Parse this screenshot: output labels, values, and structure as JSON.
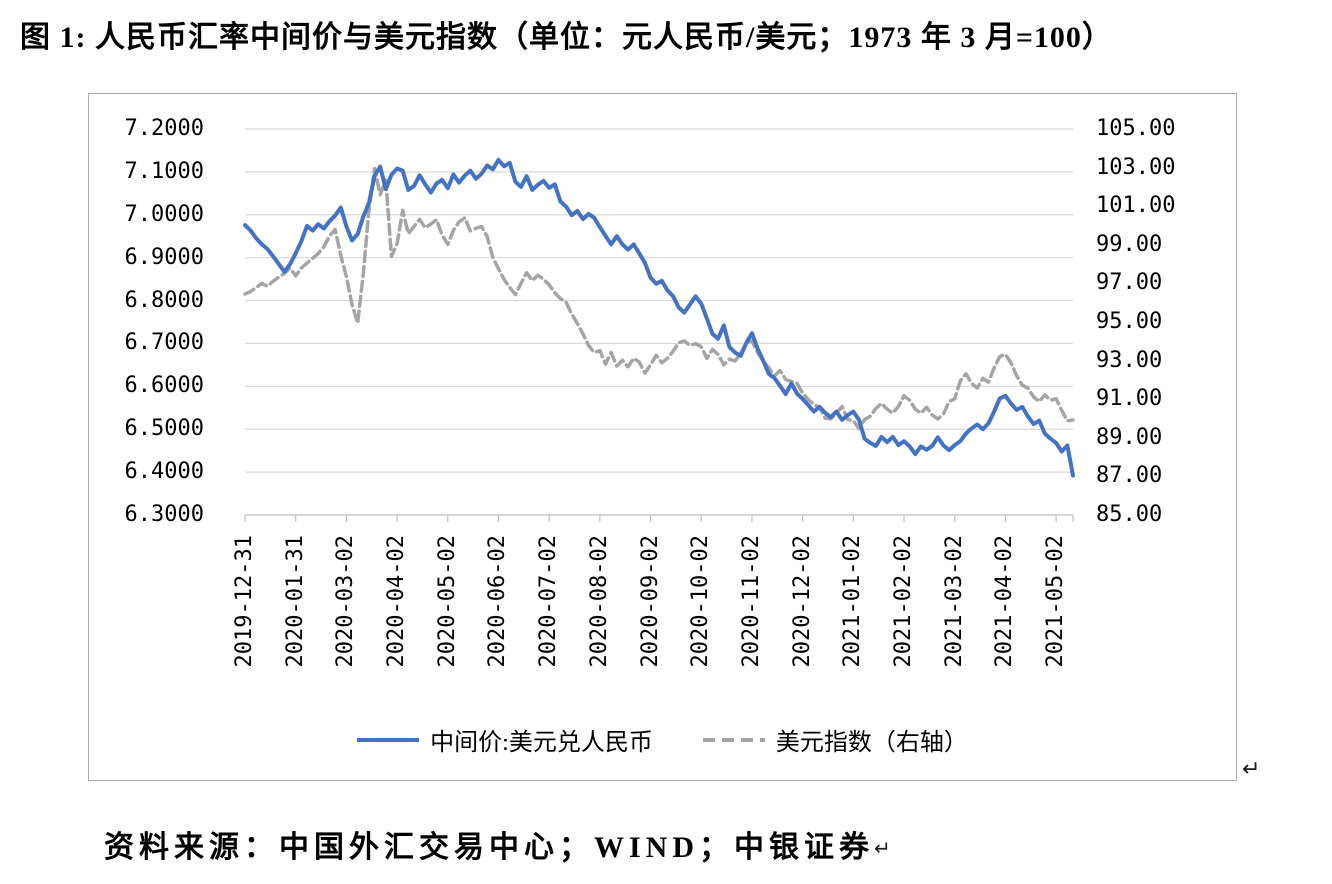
{
  "title": "图 1: 人民币汇率中间价与美元指数（单位：元人民币/美元；1973 年 3 月=100）",
  "source_line": "资料来源：中国外汇交易中心；WIND；中银证券",
  "return_mark": "↵",
  "colors": {
    "series_blue": "#4472C4",
    "series_gray": "#A5A5A5",
    "gridline": "#D9D9D9",
    "axis_line": "#BFBFBF",
    "frame_border": "#ABABAB",
    "text": "#000000"
  },
  "chart_data": {
    "type": "line",
    "title": "人民币汇率中间价与美元指数",
    "grid": true,
    "legend_position": "bottom",
    "points_per_tick": 9,
    "left_axis": {
      "labels": [
        "7.2000",
        "7.1000",
        "7.0000",
        "6.9000",
        "6.8000",
        "6.7000",
        "6.6000",
        "6.5000",
        "6.4000",
        "6.3000"
      ],
      "min": 6.3,
      "max": 7.2
    },
    "right_axis": {
      "labels": [
        "105.00",
        "103.00",
        "101.00",
        "99.00",
        "97.00",
        "95.00",
        "93.00",
        "91.00",
        "89.00",
        "87.00",
        "85.00"
      ],
      "min": 85,
      "max": 105
    },
    "x_axis": {
      "labels": [
        "2019-12-31",
        "2020-01-31",
        "2020-03-02",
        "2020-04-02",
        "2020-05-02",
        "2020-06-02",
        "2020-07-02",
        "2020-08-02",
        "2020-09-02",
        "2020-10-02",
        "2020-11-02",
        "2020-12-02",
        "2021-01-02",
        "2021-02-02",
        "2021-03-02",
        "2021-04-02",
        "2021-05-02"
      ]
    },
    "series": [
      {
        "name": "美元指数（右轴）",
        "axis": "right",
        "color": "#A5A5A5",
        "style": "dashed",
        "width": 3.5,
        "values": [
          96.45,
          96.58,
          96.8,
          97.0,
          96.85,
          97.12,
          97.32,
          97.52,
          97.8,
          97.39,
          97.8,
          98.05,
          98.3,
          98.55,
          98.9,
          99.45,
          99.8,
          98.45,
          97.35,
          95.9,
          94.95,
          97.5,
          100.8,
          102.95,
          101.6,
          102.35,
          98.4,
          99.05,
          100.78,
          99.58,
          99.95,
          100.32,
          99.88,
          100.08,
          100.3,
          99.52,
          99.02,
          99.75,
          100.18,
          100.4,
          99.72,
          99.85,
          99.95,
          99.42,
          98.35,
          97.75,
          97.2,
          96.8,
          96.42,
          97.0,
          97.55,
          97.15,
          97.42,
          97.22,
          96.92,
          96.52,
          96.22,
          96.02,
          95.42,
          94.92,
          94.38,
          93.78,
          93.42,
          93.52,
          92.82,
          93.42,
          92.72,
          93.02,
          92.68,
          93.12,
          92.92,
          92.35,
          92.78,
          93.28,
          92.88,
          93.12,
          93.48,
          93.92,
          94.02,
          93.78,
          93.88,
          93.72,
          93.12,
          93.58,
          93.32,
          92.78,
          93.08,
          92.98,
          93.38,
          93.92,
          94.02,
          93.42,
          92.98,
          92.62,
          92.22,
          92.48,
          92.02,
          91.92,
          91.82,
          91.32,
          90.98,
          90.72,
          90.58,
          90.02,
          89.98,
          90.28,
          90.62,
          89.95,
          89.88,
          89.48,
          89.95,
          90.12,
          90.52,
          90.78,
          90.48,
          90.28,
          90.62,
          91.18,
          90.95,
          90.48,
          90.28,
          90.58,
          90.18,
          89.98,
          90.22,
          90.88,
          91.02,
          91.95,
          92.32,
          91.82,
          91.58,
          92.08,
          91.88,
          92.62,
          93.22,
          93.32,
          92.88,
          92.22,
          91.72,
          91.58,
          91.12,
          90.88,
          91.22,
          90.95,
          91.02,
          90.42,
          89.88,
          89.92
        ]
      },
      {
        "name": "中间价:美元兑人民币",
        "axis": "left",
        "color": "#4472C4",
        "style": "solid",
        "width": 4,
        "values": [
          6.976,
          6.963,
          6.945,
          6.931,
          6.92,
          6.903,
          6.885,
          6.867,
          6.885,
          6.91,
          6.938,
          6.974,
          6.963,
          6.978,
          6.968,
          6.985,
          6.998,
          7.017,
          6.973,
          6.94,
          6.955,
          6.996,
          7.027,
          7.091,
          7.112,
          7.06,
          7.093,
          7.108,
          7.103,
          7.058,
          7.067,
          7.092,
          7.071,
          7.052,
          7.073,
          7.081,
          7.062,
          7.094,
          7.075,
          7.091,
          7.103,
          7.084,
          7.096,
          7.115,
          7.106,
          7.128,
          7.113,
          7.121,
          7.077,
          7.065,
          7.09,
          7.058,
          7.07,
          7.079,
          7.063,
          7.071,
          7.031,
          7.019,
          6.999,
          7.009,
          6.99,
          7.002,
          6.993,
          6.971,
          6.951,
          6.931,
          6.95,
          6.931,
          6.919,
          6.931,
          6.91,
          6.888,
          6.853,
          6.839,
          6.846,
          6.824,
          6.81,
          6.784,
          6.772,
          6.791,
          6.81,
          6.793,
          6.758,
          6.722,
          6.711,
          6.742,
          6.692,
          6.679,
          6.671,
          6.701,
          6.724,
          6.688,
          6.66,
          6.629,
          6.619,
          6.601,
          6.582,
          6.607,
          6.583,
          6.571,
          6.556,
          6.541,
          6.552,
          6.538,
          6.528,
          6.541,
          6.522,
          6.533,
          6.541,
          6.522,
          6.478,
          6.468,
          6.461,
          6.482,
          6.47,
          6.482,
          6.463,
          6.472,
          6.46,
          6.442,
          6.46,
          6.452,
          6.461,
          6.481,
          6.462,
          6.451,
          6.463,
          6.472,
          6.49,
          6.502,
          6.511,
          6.5,
          6.514,
          6.541,
          6.572,
          6.578,
          6.56,
          6.545,
          6.552,
          6.53,
          6.512,
          6.52,
          6.49,
          6.478,
          6.468,
          6.448,
          6.462,
          6.392
        ]
      }
    ]
  }
}
